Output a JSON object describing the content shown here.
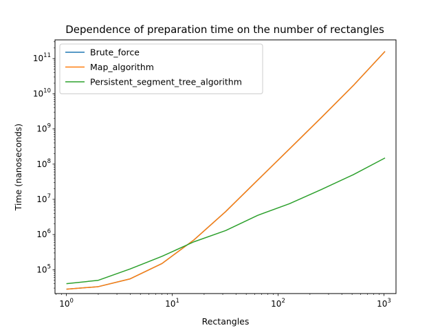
{
  "chart_data": {
    "type": "line",
    "title": "Dependence of preparation time on the number of rectangles",
    "xlabel": "Rectangles",
    "ylabel": "Time (nanoseconds)",
    "xscale": "log",
    "yscale": "log",
    "xlim": [
      0.78,
      1300
    ],
    "ylim": [
      21000,
      340000000000
    ],
    "xticks": [
      {
        "value": 1,
        "base": "10",
        "exp": "0"
      },
      {
        "value": 10,
        "base": "10",
        "exp": "1"
      },
      {
        "value": 100,
        "base": "10",
        "exp": "2"
      },
      {
        "value": 1000,
        "base": "10",
        "exp": "3"
      }
    ],
    "yticks": [
      {
        "value": 100000,
        "base": "10",
        "exp": "5"
      },
      {
        "value": 1000000,
        "base": "10",
        "exp": "6"
      },
      {
        "value": 10000000,
        "base": "10",
        "exp": "7"
      },
      {
        "value": 100000000,
        "base": "10",
        "exp": "8"
      },
      {
        "value": 1000000000,
        "base": "10",
        "exp": "9"
      },
      {
        "value": 10000000000,
        "base": "10",
        "exp": "10"
      },
      {
        "value": 100000000000,
        "base": "10",
        "exp": "11"
      }
    ],
    "grid": false,
    "legend_position": "top-left",
    "series": [
      {
        "name": "Brute_force",
        "color": "#1f77b4",
        "x": [
          1,
          2,
          4,
          8,
          16,
          32,
          64,
          128,
          256,
          512,
          1024
        ],
        "y": [
          28000,
          33000,
          55000,
          150000,
          700000,
          4500000,
          35000000,
          270000000,
          2100000000,
          17000000000,
          160000000000
        ]
      },
      {
        "name": "Map_algorithm",
        "color": "#ff7f0e",
        "x": [
          1,
          2,
          4,
          8,
          16,
          32,
          64,
          128,
          256,
          512,
          1024
        ],
        "y": [
          28000,
          33000,
          55000,
          150000,
          700000,
          4500000,
          35000000,
          270000000,
          2100000000,
          17000000000,
          160000000000
        ]
      },
      {
        "name": "Persistent_segment_tree_algorithm",
        "color": "#2ca02c",
        "x": [
          1,
          2,
          4,
          8,
          16,
          32,
          64,
          128,
          256,
          512,
          1024
        ],
        "y": [
          40000,
          50000,
          105000,
          240000,
          620000,
          1300000,
          3500000,
          7500000,
          19000000,
          50000000,
          150000000
        ]
      }
    ]
  }
}
